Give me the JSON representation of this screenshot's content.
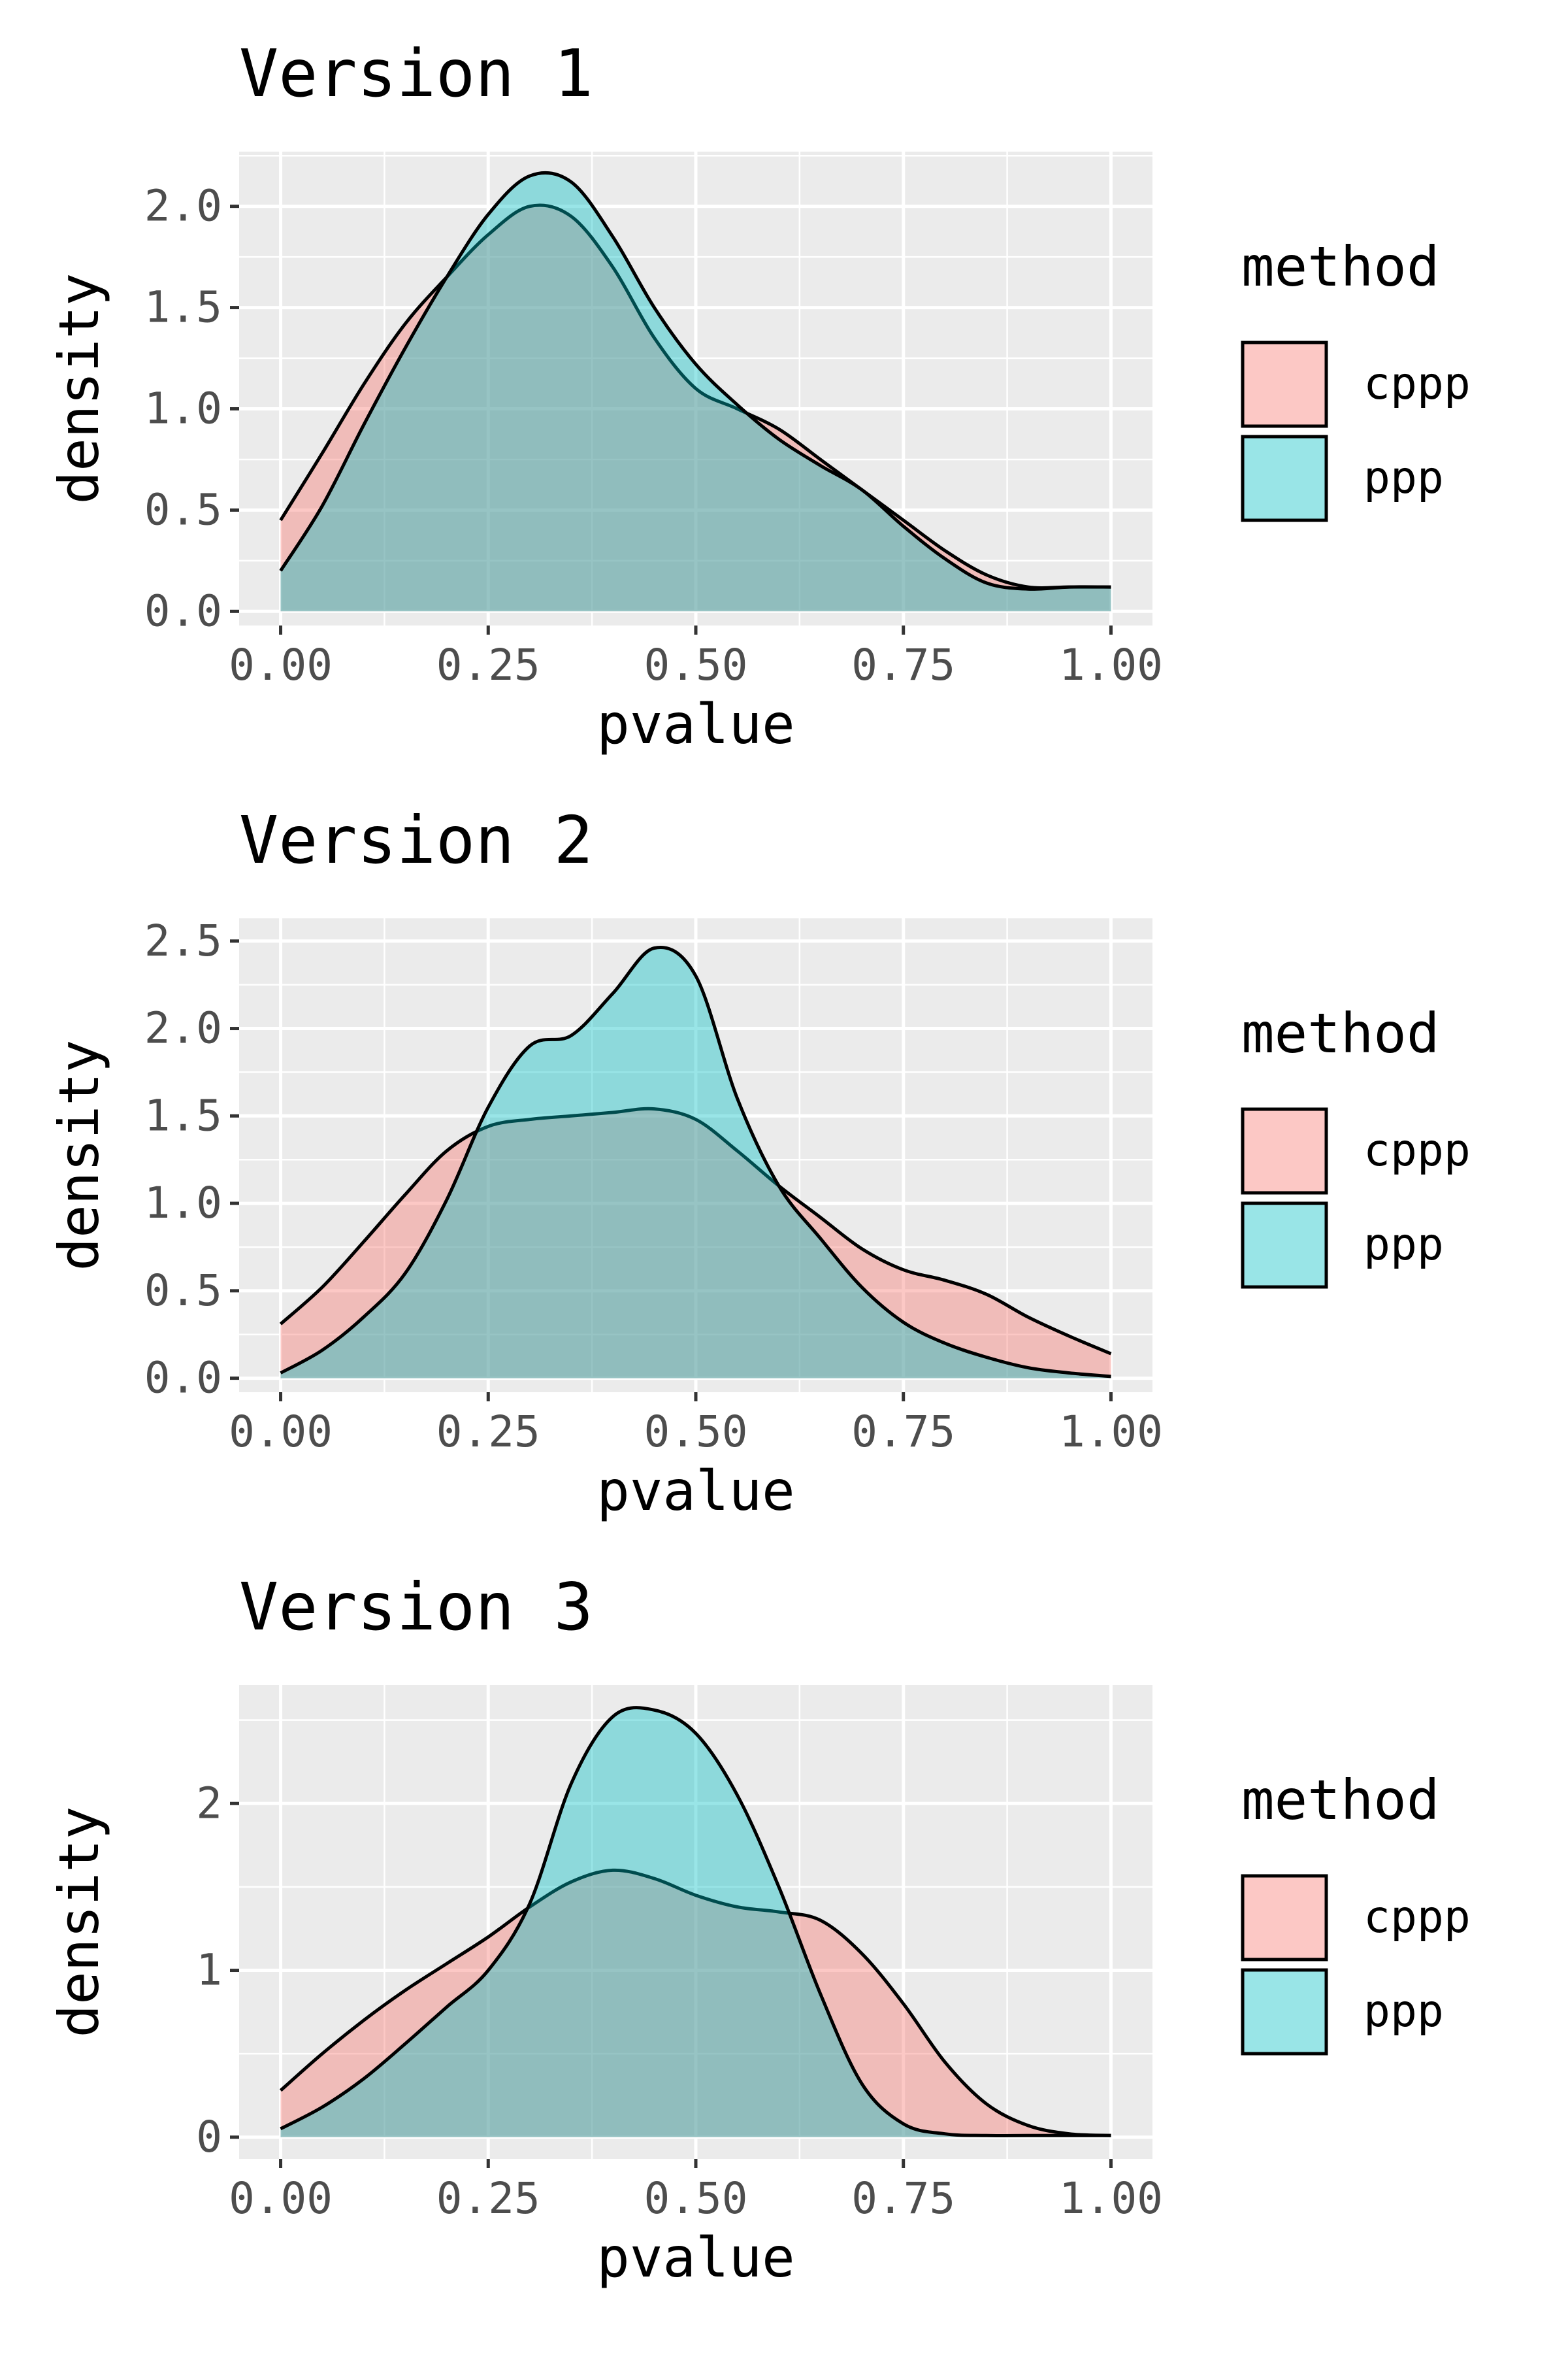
{
  "chart_data": [
    {
      "type": "area",
      "title": "Version 1",
      "xlabel": "pvalue",
      "ylabel": "density",
      "xlim": [
        -0.05,
        1.05
      ],
      "ylim": [
        -0.07,
        2.27
      ],
      "xticks": [
        0,
        0.25,
        0.5,
        0.75,
        1
      ],
      "xtick_labels": [
        "0.00",
        "0.25",
        "0.50",
        "0.75",
        "1.00"
      ],
      "yticks": [
        0,
        0.5,
        1,
        1.5,
        2
      ],
      "ytick_labels": [
        "0.0",
        "0.5",
        "1.0",
        "1.5",
        "2.0"
      ],
      "grid": true,
      "legend": {
        "title": "method",
        "position": "right",
        "entries": [
          "cppp",
          "ppp"
        ]
      },
      "series": [
        {
          "name": "cppp",
          "color": "#F8766D",
          "x": [
            0,
            0.05,
            0.1,
            0.15,
            0.2,
            0.25,
            0.3,
            0.35,
            0.4,
            0.45,
            0.5,
            0.55,
            0.6,
            0.65,
            0.7,
            0.75,
            0.8,
            0.85,
            0.9,
            0.95,
            1.0
          ],
          "y": [
            0.45,
            0.78,
            1.12,
            1.42,
            1.65,
            1.86,
            2.0,
            1.95,
            1.7,
            1.35,
            1.1,
            1.0,
            0.9,
            0.75,
            0.6,
            0.45,
            0.3,
            0.18,
            0.12,
            0.12,
            0.12
          ]
        },
        {
          "name": "ppp",
          "color": "#00BFC4",
          "x": [
            0,
            0.05,
            0.1,
            0.15,
            0.2,
            0.25,
            0.3,
            0.35,
            0.4,
            0.45,
            0.5,
            0.55,
            0.6,
            0.65,
            0.7,
            0.75,
            0.8,
            0.85,
            0.9,
            0.95,
            1.0
          ],
          "y": [
            0.2,
            0.52,
            0.92,
            1.3,
            1.65,
            1.96,
            2.15,
            2.12,
            1.85,
            1.5,
            1.22,
            1.02,
            0.85,
            0.72,
            0.6,
            0.42,
            0.26,
            0.14,
            0.11,
            0.12,
            0.12
          ]
        }
      ]
    },
    {
      "type": "area",
      "title": "Version 2",
      "xlabel": "pvalue",
      "ylabel": "density",
      "xlim": [
        -0.05,
        1.05
      ],
      "ylim": [
        -0.08,
        2.63
      ],
      "xticks": [
        0,
        0.25,
        0.5,
        0.75,
        1
      ],
      "xtick_labels": [
        "0.00",
        "0.25",
        "0.50",
        "0.75",
        "1.00"
      ],
      "yticks": [
        0,
        0.5,
        1,
        1.5,
        2,
        2.5
      ],
      "ytick_labels": [
        "0.0",
        "0.5",
        "1.0",
        "1.5",
        "2.0",
        "2.5"
      ],
      "grid": true,
      "legend": {
        "title": "method",
        "position": "right",
        "entries": [
          "cppp",
          "ppp"
        ]
      },
      "series": [
        {
          "name": "cppp",
          "color": "#F8766D",
          "x": [
            0,
            0.05,
            0.1,
            0.15,
            0.2,
            0.25,
            0.3,
            0.35,
            0.4,
            0.45,
            0.5,
            0.55,
            0.6,
            0.65,
            0.7,
            0.75,
            0.8,
            0.85,
            0.9,
            0.95,
            1.0
          ],
          "y": [
            0.31,
            0.52,
            0.78,
            1.05,
            1.3,
            1.44,
            1.48,
            1.5,
            1.52,
            1.54,
            1.48,
            1.3,
            1.1,
            0.92,
            0.74,
            0.62,
            0.56,
            0.48,
            0.35,
            0.24,
            0.14
          ]
        },
        {
          "name": "ppp",
          "color": "#00BFC4",
          "x": [
            0,
            0.05,
            0.1,
            0.15,
            0.2,
            0.25,
            0.3,
            0.35,
            0.4,
            0.45,
            0.5,
            0.55,
            0.6,
            0.65,
            0.7,
            0.75,
            0.8,
            0.85,
            0.9,
            0.95,
            1.0
          ],
          "y": [
            0.03,
            0.16,
            0.35,
            0.6,
            1.02,
            1.55,
            1.9,
            1.96,
            2.2,
            2.46,
            2.3,
            1.6,
            1.1,
            0.8,
            0.52,
            0.32,
            0.2,
            0.12,
            0.06,
            0.03,
            0.01
          ]
        }
      ]
    },
    {
      "type": "area",
      "title": "Version 3",
      "xlabel": "pvalue",
      "ylabel": "density",
      "xlim": [
        -0.05,
        1.05
      ],
      "ylim": [
        -0.13,
        2.71
      ],
      "xticks": [
        0,
        0.25,
        0.5,
        0.75,
        1
      ],
      "xtick_labels": [
        "0.00",
        "0.25",
        "0.50",
        "0.75",
        "1.00"
      ],
      "yticks": [
        0,
        1,
        2
      ],
      "ytick_labels": [
        "0",
        "1",
        "2"
      ],
      "grid": true,
      "legend": {
        "title": "method",
        "position": "right",
        "entries": [
          "cppp",
          "ppp"
        ]
      },
      "series": [
        {
          "name": "cppp",
          "color": "#F8766D",
          "x": [
            0,
            0.05,
            0.1,
            0.15,
            0.2,
            0.25,
            0.3,
            0.35,
            0.4,
            0.45,
            0.5,
            0.55,
            0.6,
            0.65,
            0.7,
            0.75,
            0.8,
            0.85,
            0.9,
            0.95,
            1.0
          ],
          "y": [
            0.28,
            0.5,
            0.7,
            0.88,
            1.04,
            1.2,
            1.38,
            1.53,
            1.6,
            1.55,
            1.45,
            1.38,
            1.35,
            1.3,
            1.1,
            0.8,
            0.45,
            0.2,
            0.07,
            0.02,
            0.01
          ]
        },
        {
          "name": "ppp",
          "color": "#00BFC4",
          "x": [
            0,
            0.05,
            0.1,
            0.15,
            0.2,
            0.25,
            0.3,
            0.35,
            0.4,
            0.45,
            0.5,
            0.55,
            0.6,
            0.65,
            0.7,
            0.75,
            0.8,
            0.85,
            0.9,
            0.95,
            1.0
          ],
          "y": [
            0.05,
            0.18,
            0.35,
            0.56,
            0.78,
            1.0,
            1.4,
            2.12,
            2.52,
            2.56,
            2.42,
            2.05,
            1.5,
            0.86,
            0.32,
            0.08,
            0.02,
            0.01,
            0.01,
            0.01,
            0.01
          ]
        }
      ]
    }
  ]
}
